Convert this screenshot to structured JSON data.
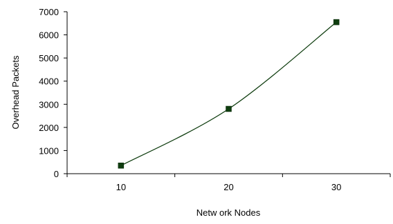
{
  "chart_data": {
    "type": "line",
    "title": "",
    "xlabel": "Netw ork Nodes",
    "ylabel": "Overhead Packets",
    "categories": [
      "10",
      "20",
      "30"
    ],
    "series": [
      {
        "values": [
          350,
          2800,
          6550
        ],
        "color": "#0f3d0f",
        "marker": "square",
        "smooth": true
      }
    ],
    "ylim": [
      0,
      7000
    ],
    "yticks": [
      0,
      1000,
      2000,
      3000,
      4000,
      5000,
      6000,
      7000
    ],
    "grid": false,
    "legend": "none"
  }
}
